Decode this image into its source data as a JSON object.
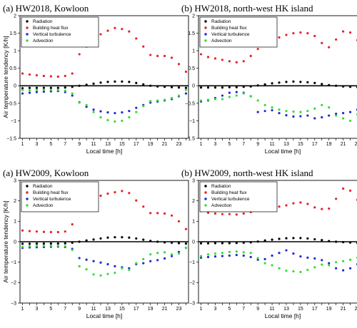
{
  "colors": {
    "Radiation": "#000000",
    "Building heat flux": "#e8202a",
    "Vertical turbulence": "#1f2ad0",
    "Advection": "#33dd33"
  },
  "chart_data": [
    {
      "type": "scatter",
      "title": "(a) HW2018, Kowloon",
      "xlabel": "Local time [h]",
      "ylabel": "Air temperature tendency [K/h]",
      "xlim": [
        1,
        24
      ],
      "ylim": [
        -1.5,
        2.0
      ],
      "yticks": [
        -1.5,
        -1,
        -0.5,
        0,
        0.5,
        1,
        1.5,
        2
      ],
      "ytick_labels": [
        "−1.5",
        "−1",
        "−0.5",
        "0",
        "0.5",
        "1",
        "1.5",
        "2"
      ],
      "xticks": [
        1,
        3,
        5,
        7,
        9,
        11,
        13,
        15,
        17,
        19,
        21,
        23
      ],
      "xminorticks": [
        2,
        4,
        6,
        8,
        10,
        12,
        14,
        16,
        18,
        20,
        22,
        24
      ],
      "legend_position": "top-left",
      "x": [
        1,
        2,
        3,
        4,
        5,
        6,
        7,
        8,
        9,
        10,
        11,
        12,
        13,
        14,
        15,
        16,
        17,
        18,
        19,
        20,
        21,
        22,
        23,
        24
      ],
      "series": [
        {
          "name": "Radiation",
          "values": [
            -0.07,
            -0.06,
            -0.06,
            -0.06,
            -0.06,
            -0.06,
            -0.05,
            -0.03,
            0.0,
            0.03,
            0.06,
            0.09,
            0.11,
            0.12,
            0.12,
            0.11,
            0.08,
            0.04,
            0.0,
            -0.02,
            -0.03,
            -0.04,
            -0.05,
            -0.06
          ]
        },
        {
          "name": "Building heat flux",
          "values": [
            0.35,
            0.32,
            0.3,
            0.28,
            0.27,
            0.26,
            0.28,
            0.35,
            0.9,
            1.12,
            1.32,
            1.47,
            1.57,
            1.65,
            1.62,
            1.55,
            1.35,
            1.12,
            0.88,
            0.85,
            0.85,
            0.8,
            0.62,
            0.4
          ]
        },
        {
          "name": "Vertical turbulence",
          "values": [
            -0.22,
            -0.2,
            -0.18,
            -0.17,
            -0.16,
            -0.15,
            -0.18,
            -0.28,
            -0.47,
            -0.6,
            -0.68,
            -0.73,
            -0.76,
            -0.78,
            -0.76,
            -0.72,
            -0.63,
            -0.55,
            -0.48,
            -0.45,
            -0.42,
            -0.38,
            -0.3,
            -0.22
          ]
        },
        {
          "name": "Advection",
          "values": [
            -0.12,
            -0.13,
            -0.12,
            -0.11,
            -0.12,
            -0.12,
            -0.14,
            -0.22,
            -0.48,
            -0.55,
            -0.75,
            -0.9,
            -0.98,
            -1.02,
            -1.0,
            -0.9,
            -0.75,
            -0.58,
            -0.44,
            -0.42,
            -0.4,
            -0.35,
            -0.28,
            -0.12
          ]
        }
      ]
    },
    {
      "type": "scatter",
      "title": "(b) HW2018, north-west HK island",
      "xlabel": "Local time [h]",
      "ylabel": "",
      "xlim": [
        1,
        24
      ],
      "ylim": [
        -1.5,
        2.0
      ],
      "yticks": [
        -1.5,
        -1,
        -0.5,
        0,
        0.5,
        1,
        1.5,
        2
      ],
      "ytick_labels": [
        "−1.5",
        "−1",
        "−0.5",
        "0",
        "0.5",
        "1",
        "1.5",
        "2"
      ],
      "xticks": [
        1,
        3,
        5,
        7,
        9,
        11,
        13,
        15,
        17,
        19,
        21,
        23
      ],
      "xminorticks": [
        2,
        4,
        6,
        8,
        10,
        12,
        14,
        16,
        18,
        20,
        22,
        24
      ],
      "legend_position": "top-left",
      "x": [
        1,
        2,
        3,
        4,
        5,
        6,
        7,
        8,
        9,
        10,
        11,
        12,
        13,
        14,
        15,
        16,
        17,
        18,
        19,
        20,
        21,
        22,
        23,
        24
      ],
      "series": [
        {
          "name": "Radiation",
          "values": [
            -0.05,
            -0.05,
            -0.05,
            -0.05,
            -0.04,
            -0.04,
            -0.03,
            -0.02,
            0.01,
            0.04,
            0.07,
            0.09,
            0.11,
            0.12,
            0.11,
            0.1,
            0.08,
            0.05,
            0.02,
            0.0,
            -0.02,
            -0.03,
            -0.04,
            -0.05
          ]
        },
        {
          "name": "Building heat flux",
          "values": [
            0.9,
            0.82,
            0.78,
            0.74,
            0.7,
            0.67,
            0.7,
            0.85,
            1.05,
            1.2,
            1.3,
            1.38,
            1.45,
            1.5,
            1.52,
            1.5,
            1.42,
            1.22,
            1.1,
            1.32,
            1.55,
            1.52,
            1.3,
            1.0
          ]
        },
        {
          "name": "Vertical turbulence",
          "values": [
            -0.45,
            -0.42,
            -0.35,
            -0.28,
            -0.2,
            -0.18,
            -0.2,
            -0.3,
            -0.75,
            -0.72,
            -0.7,
            -0.78,
            -0.84,
            -0.88,
            -0.87,
            -0.85,
            -0.93,
            -0.9,
            -0.85,
            -0.8,
            -0.78,
            -0.75,
            -0.68,
            -0.55
          ]
        },
        {
          "name": "Advection",
          "values": [
            -0.42,
            -0.4,
            -0.38,
            -0.38,
            -0.32,
            -0.28,
            -0.22,
            -0.3,
            -0.42,
            -0.55,
            -0.62,
            -0.68,
            -0.72,
            -0.74,
            -0.75,
            -0.72,
            -0.65,
            -0.55,
            -0.62,
            -0.85,
            -0.93,
            -1.0,
            -0.82,
            -0.45
          ]
        }
      ]
    },
    {
      "type": "scatter",
      "title": "(a) HW2009, Kowloon",
      "xlabel": "Local time [h]",
      "ylabel": "Air temperature tendency [K/h]",
      "xlim": [
        1,
        24
      ],
      "ylim": [
        -3,
        3
      ],
      "yticks": [
        -3,
        -2,
        -1,
        0,
        1,
        2,
        3
      ],
      "ytick_labels": [
        "−3",
        "−2",
        "−1",
        "0",
        "1",
        "2",
        "3"
      ],
      "xticks": [
        1,
        3,
        5,
        7,
        9,
        11,
        13,
        15,
        17,
        19,
        21,
        23
      ],
      "xminorticks": [
        2,
        4,
        6,
        8,
        10,
        12,
        14,
        16,
        18,
        20,
        22,
        24
      ],
      "legend_position": "top-left",
      "x": [
        1,
        2,
        3,
        4,
        5,
        6,
        7,
        8,
        9,
        10,
        11,
        12,
        13,
        14,
        15,
        16,
        17,
        18,
        19,
        20,
        21,
        22,
        23,
        24
      ],
      "series": [
        {
          "name": "Radiation",
          "values": [
            -0.1,
            -0.1,
            -0.09,
            -0.09,
            -0.09,
            -0.09,
            -0.08,
            -0.05,
            0.0,
            0.06,
            0.11,
            0.16,
            0.2,
            0.22,
            0.22,
            0.2,
            0.16,
            0.1,
            0.04,
            0.0,
            -0.03,
            -0.05,
            -0.07,
            -0.09
          ]
        },
        {
          "name": "Building heat flux",
          "values": [
            0.55,
            0.52,
            0.5,
            0.48,
            0.47,
            0.47,
            0.5,
            0.85,
            1.75,
            2.0,
            2.15,
            2.25,
            2.35,
            2.42,
            2.48,
            2.38,
            2.02,
            1.72,
            1.4,
            1.4,
            1.38,
            1.28,
            1.0,
            0.62
          ]
        },
        {
          "name": "Vertical turbulence",
          "values": [
            -0.3,
            -0.28,
            -0.27,
            -0.26,
            -0.25,
            -0.24,
            -0.26,
            -0.35,
            -0.8,
            -0.88,
            -0.95,
            -1.02,
            -1.1,
            -1.2,
            -1.25,
            -1.3,
            -1.1,
            -1.05,
            -0.95,
            -0.9,
            -0.82,
            -0.7,
            -0.5,
            -0.3
          ]
        },
        {
          "name": "Advection",
          "values": [
            -0.25,
            -0.22,
            -0.2,
            -0.2,
            -0.2,
            -0.2,
            -0.22,
            -0.4,
            -1.2,
            -1.35,
            -1.6,
            -1.65,
            -1.58,
            -1.52,
            -1.3,
            -1.38,
            -1.05,
            -0.85,
            -0.62,
            -0.55,
            -0.52,
            -0.62,
            -0.58,
            -0.3
          ]
        }
      ]
    },
    {
      "type": "scatter",
      "title": "(b) HW2009, north-west HK island",
      "xlabel": "Local time [h]",
      "ylabel": "",
      "xlim": [
        1,
        24
      ],
      "ylim": [
        -3,
        3
      ],
      "yticks": [
        -3,
        -2,
        -1,
        0,
        1,
        2,
        3
      ],
      "ytick_labels": [
        "−3",
        "−2",
        "−1",
        "0",
        "1",
        "2",
        "3"
      ],
      "xticks": [
        1,
        3,
        5,
        7,
        9,
        11,
        13,
        15,
        17,
        19,
        21,
        23
      ],
      "xminorticks": [
        2,
        4,
        6,
        8,
        10,
        12,
        14,
        16,
        18,
        20,
        22,
        24
      ],
      "legend_position": "top-left",
      "x": [
        1,
        2,
        3,
        4,
        5,
        6,
        7,
        8,
        9,
        10,
        11,
        12,
        13,
        14,
        15,
        16,
        17,
        18,
        19,
        20,
        21,
        22,
        23,
        24
      ],
      "series": [
        {
          "name": "Radiation",
          "values": [
            -0.08,
            -0.08,
            -0.07,
            -0.07,
            -0.07,
            -0.06,
            -0.05,
            -0.03,
            0.01,
            0.06,
            0.1,
            0.14,
            0.17,
            0.18,
            0.18,
            0.16,
            0.12,
            0.08,
            0.03,
            0.0,
            -0.02,
            -0.04,
            -0.06,
            -0.07
          ]
        },
        {
          "name": "Building heat flux",
          "values": [
            1.5,
            1.42,
            1.38,
            1.35,
            1.35,
            1.33,
            1.38,
            1.45,
            1.7,
            1.8,
            1.62,
            1.72,
            1.78,
            1.88,
            1.92,
            1.85,
            1.68,
            1.6,
            1.62,
            2.1,
            2.6,
            2.5,
            2.05,
            1.55
          ]
        },
        {
          "name": "Vertical turbulence",
          "values": [
            -0.78,
            -0.75,
            -0.72,
            -0.7,
            -0.68,
            -0.65,
            -0.68,
            -0.75,
            -0.88,
            -0.85,
            -0.68,
            -0.55,
            -0.42,
            -0.58,
            -0.72,
            -0.78,
            -0.82,
            -0.9,
            -1.05,
            -1.3,
            -1.4,
            -1.3,
            -1.1,
            -0.8
          ]
        },
        {
          "name": "Advection",
          "values": [
            -0.7,
            -0.62,
            -0.58,
            -0.55,
            -0.5,
            -0.48,
            -0.52,
            -0.55,
            -0.8,
            -1.05,
            -1.15,
            -1.3,
            -1.42,
            -1.45,
            -1.48,
            -1.38,
            -1.25,
            -1.12,
            -1.15,
            -1.0,
            -0.95,
            -0.88,
            -0.78,
            -0.62
          ]
        }
      ]
    }
  ]
}
